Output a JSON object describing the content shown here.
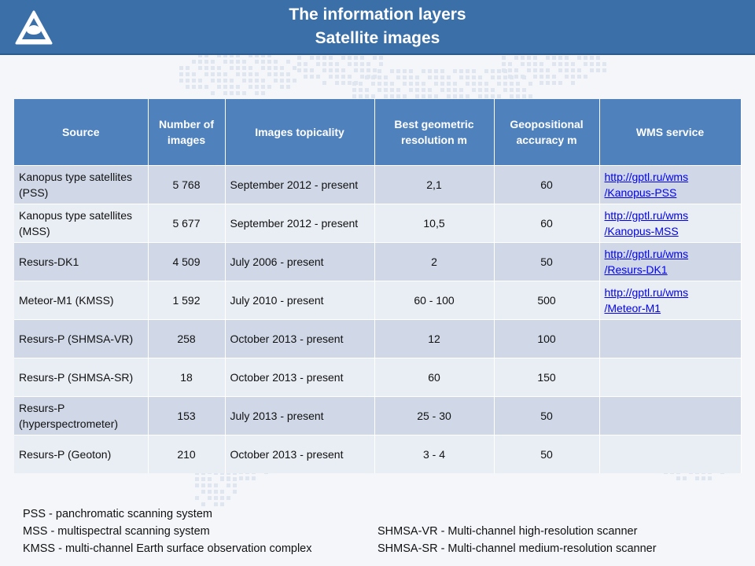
{
  "header": {
    "title_line1": "The information layers",
    "title_line2": "Satellite images"
  },
  "colors": {
    "header_bg": "#3a6fa8",
    "table_header": "#4f81bd",
    "row_odd": "#d0d8e8",
    "row_even": "#e9edf4"
  },
  "table": {
    "columns": [
      "Source",
      "Number of images",
      "Images topicality",
      "Best geometric resolution m",
      "Geopositional accuracy m",
      "WMS service"
    ],
    "rows": [
      {
        "source": "Kanopus type satellites  (PSS)",
        "count": "5 768",
        "topicality": "September 2012 - present",
        "resolution": "2,1",
        "accuracy": "60",
        "wms": "http://gptl.ru/wms/Kanopus-PSS"
      },
      {
        "source": "Kanopus type satellites  (MSS)",
        "count": "5 677",
        "topicality": "September 2012 - present",
        "resolution": "10,5",
        "accuracy": "60",
        "wms": "http://gptl.ru/wms/Kanopus-MSS"
      },
      {
        "source": "Resurs-DK1",
        "count": "4 509",
        "topicality": "July 2006 - present",
        "resolution": "2",
        "accuracy": "50",
        "wms": "http://gptl.ru/wms/Resurs-DK1"
      },
      {
        "source": "Meteor-M1 (KMSS)",
        "count": "1 592",
        "topicality": "July 2010 - present",
        "resolution": "60 - 100",
        "accuracy": "500",
        "wms": "http://gptl.ru/wms/Meteor-M1"
      },
      {
        "source": "Resurs-P (SHMSA-VR)",
        "count": "258",
        "topicality": "October 2013 - present",
        "resolution": "12",
        "accuracy": "100",
        "wms": ""
      },
      {
        "source": "Resurs-P (SHMSA-SR)",
        "count": "18",
        "topicality": "October 2013 - present",
        "resolution": "60",
        "accuracy": "150",
        "wms": ""
      },
      {
        "source": "Resurs-P (hyperspectrometer)",
        "count": "153",
        "topicality": "July 2013 - present",
        "resolution": "25 - 30",
        "accuracy": "50",
        "wms": ""
      },
      {
        "source": "Resurs-P (Geoton)",
        "count": "210",
        "topicality": "October 2013 - present",
        "resolution": "3 - 4",
        "accuracy": "50",
        "wms": ""
      }
    ]
  },
  "notes": {
    "pss": "PSS - panchromatic scanning system",
    "mss": "MSS - multispectral scanning system",
    "kmss": "KMSS - multi-channel Earth surface observation complex",
    "shmsa_vr": "SHMSA-VR - Multi-channel high-resolution scanner",
    "shmsa_sr": "SHMSA-SR - Multi-channel medium-resolution scanner"
  }
}
